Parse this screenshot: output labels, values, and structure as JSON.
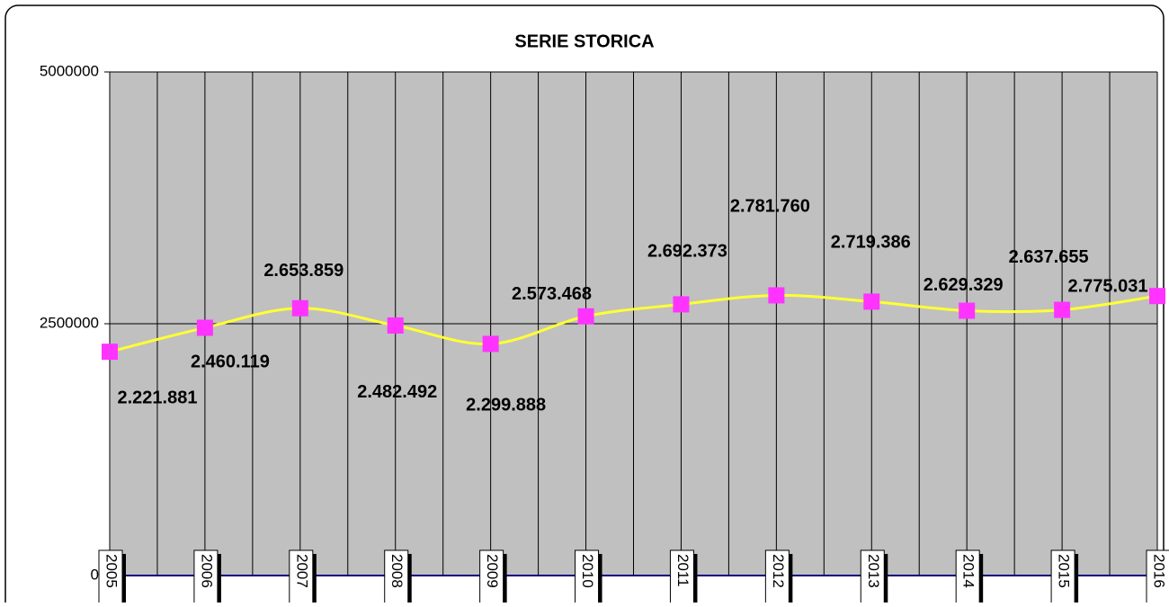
{
  "chart_data": {
    "type": "line",
    "title": "SERIE STORICA",
    "categories": [
      "2005",
      "2006",
      "2007",
      "2008",
      "2009",
      "2010",
      "2011",
      "2012",
      "2013",
      "2014",
      "2015",
      "2016"
    ],
    "series": [
      {
        "name": "SERIE STORICA",
        "color": "#ffff33",
        "marker_color": "#ff33ff",
        "values": [
          2221881,
          2460119,
          2653859,
          2482492,
          2299888,
          2573468,
          2692373,
          2781760,
          2719386,
          2629329,
          2637655,
          2775031
        ],
        "value_labels": [
          "2.221.881",
          "2.460.119",
          "2.653.859",
          "2.482.492",
          "2.299.888",
          "2.573.468",
          "2.692.373",
          "2.781.760",
          "2.719.386",
          "2.629.329",
          "2.637.655",
          "2.775.031"
        ]
      }
    ],
    "ylim": [
      0,
      5000000
    ],
    "yticks": [
      0,
      2500000,
      5000000
    ],
    "grid": true
  }
}
